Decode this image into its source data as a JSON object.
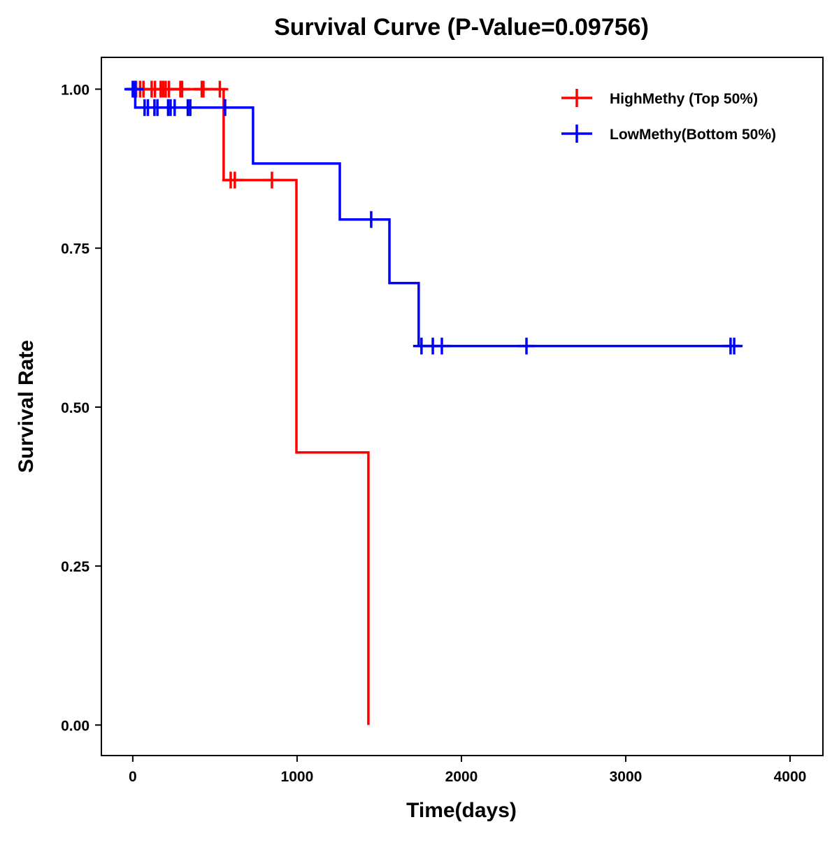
{
  "chart_data": {
    "type": "line",
    "subtype": "kaplan-meier",
    "title": "Survival Curve (P-Value=0.09756)",
    "xlabel": "Time(days)",
    "ylabel": "Survival Rate",
    "xlim": [
      -191,
      4200
    ],
    "ylim": [
      -0.048,
      1.05
    ],
    "xticks": [
      0,
      1000,
      2000,
      3000,
      4000
    ],
    "xtick_labels": [
      "0",
      "1000",
      "2000",
      "3000",
      "4000"
    ],
    "yticks": [
      0,
      0.25,
      0.5,
      0.75,
      1.0
    ],
    "ytick_labels": [
      "0.00",
      "0.25",
      "0.50",
      "0.75",
      "1.00"
    ],
    "grid": false,
    "legend_position": "top-right",
    "series": [
      {
        "name": "HighMethy (Top 50%)",
        "color": "#ff0000",
        "steps": [
          [
            0,
            1.0
          ],
          [
            553,
            0.857
          ],
          [
            996,
            0.4286
          ],
          [
            1434,
            0.0
          ]
        ],
        "end": 1434,
        "censors": [
          [
            20,
            1.0
          ],
          [
            45,
            1.0
          ],
          [
            65,
            1.0
          ],
          [
            115,
            1.0
          ],
          [
            135,
            1.0
          ],
          [
            170,
            1.0
          ],
          [
            185,
            1.0
          ],
          [
            200,
            1.0
          ],
          [
            220,
            1.0
          ],
          [
            290,
            1.0
          ],
          [
            300,
            1.0
          ],
          [
            420,
            1.0
          ],
          [
            430,
            1.0
          ],
          [
            530,
            1.0
          ],
          [
            596,
            0.857
          ],
          [
            621,
            0.857
          ],
          [
            847,
            0.857
          ]
        ]
      },
      {
        "name": "LowMethy(Bottom 50%)",
        "color": "#0000ff",
        "steps": [
          [
            -40,
            1.0
          ],
          [
            15,
            0.971
          ],
          [
            732,
            0.883
          ],
          [
            1260,
            0.795
          ],
          [
            1562,
            0.695
          ],
          [
            1740,
            0.596
          ]
        ],
        "end": 3700,
        "censors": [
          [
            0,
            1.0
          ],
          [
            8,
            1.0
          ],
          [
            15,
            1.0
          ],
          [
            72,
            0.971
          ],
          [
            92,
            0.971
          ],
          [
            132,
            0.971
          ],
          [
            150,
            0.971
          ],
          [
            215,
            0.971
          ],
          [
            230,
            0.971
          ],
          [
            255,
            0.971
          ],
          [
            335,
            0.971
          ],
          [
            350,
            0.971
          ],
          [
            562,
            0.971
          ],
          [
            1451,
            0.795
          ],
          [
            1757,
            0.596
          ],
          [
            1826,
            0.596
          ],
          [
            1881,
            0.596
          ],
          [
            2396,
            0.596
          ],
          [
            3638,
            0.596
          ],
          [
            3660,
            0.596
          ]
        ]
      }
    ]
  }
}
